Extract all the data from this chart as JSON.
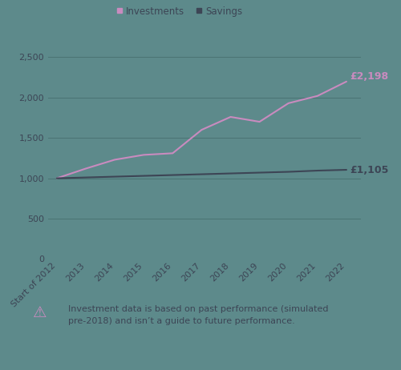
{
  "x_labels": [
    "Start of 2012",
    "2013",
    "2014",
    "2015",
    "2016",
    "2017",
    "2018",
    "2019",
    "2020",
    "2021",
    "2022"
  ],
  "investments": [
    1000,
    1120,
    1230,
    1290,
    1310,
    1600,
    1760,
    1700,
    1930,
    2020,
    2198
  ],
  "savings": [
    1000,
    1010,
    1020,
    1030,
    1040,
    1050,
    1060,
    1070,
    1080,
    1095,
    1105
  ],
  "investments_color": "#c98bbf",
  "savings_color": "#3d4555",
  "investments_label": "Investments",
  "savings_label": "Savings",
  "investments_end_label": "£2,198",
  "savings_end_label": "£1,105",
  "ylim": [
    0,
    2750
  ],
  "yticks": [
    0,
    500,
    1000,
    1500,
    2000,
    2500
  ],
  "background_color": "#5d8a8b",
  "grid_color": "#4a7373",
  "tick_label_color": "#3d4555",
  "legend_label_color": "#3d4555",
  "footnote": "Investment data is based on past performance (simulated\npre-2018) and isn’t a guide to future performance.",
  "warning_color": "#c98bbf",
  "line_width": 1.5,
  "font_size_ticks": 8,
  "font_size_legend": 8.5,
  "font_size_endlabel": 9,
  "font_size_footnote": 8
}
